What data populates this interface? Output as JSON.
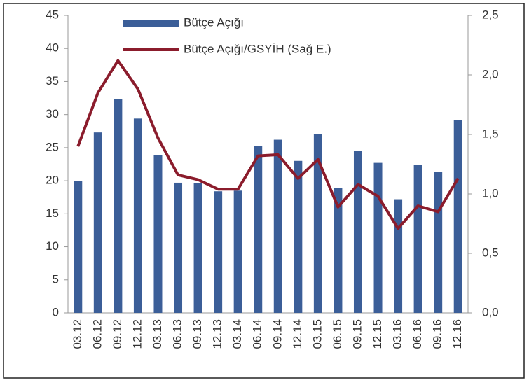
{
  "chart_data": {
    "type": "bar",
    "categories": [
      "03.12",
      "06.12",
      "09.12",
      "12.12",
      "03.13",
      "06.13",
      "09.13",
      "12.13",
      "03.14",
      "06.14",
      "09.14",
      "12.14",
      "03.15",
      "06.15",
      "09.15",
      "12.15",
      "03.16",
      "06.16",
      "09.16",
      "12.16"
    ],
    "series": [
      {
        "name": "Bütçe Açığı",
        "color": "#3b5e98",
        "values": [
          20,
          27.3,
          32.3,
          29.4,
          23.9,
          19.7,
          19.6,
          18.4,
          18.5,
          25.2,
          26.2,
          23,
          27,
          18.9,
          24.5,
          22.7,
          17.2,
          22.4,
          21.3,
          29.2
        ]
      },
      {
        "name": "Bütçe Açığı/GSYİH (Sağ E.)",
        "color": "#8b1c2c",
        "type": "line",
        "axis": "y2",
        "values": [
          1.4,
          1.85,
          2.12,
          1.88,
          1.47,
          1.16,
          1.12,
          1.04,
          1.04,
          1.32,
          1.33,
          1.13,
          1.29,
          0.89,
          1.08,
          0.98,
          0.71,
          0.9,
          0.85,
          1.13
        ]
      }
    ],
    "ylim": [
      0,
      45
    ],
    "yticks": [
      0,
      5,
      10,
      15,
      20,
      25,
      30,
      35,
      40,
      45
    ],
    "y2lim": [
      0,
      2.5
    ],
    "y2ticks": [
      {
        "value": 0,
        "label": "0,0"
      },
      {
        "value": 0.5,
        "label": "0,5"
      },
      {
        "value": 1,
        "label": "1,0"
      },
      {
        "value": 1.5,
        "label": "1,5"
      },
      {
        "value": 2,
        "label": "2,0"
      },
      {
        "value": 2.5,
        "label": "2,5"
      }
    ],
    "legend": "top-left"
  }
}
